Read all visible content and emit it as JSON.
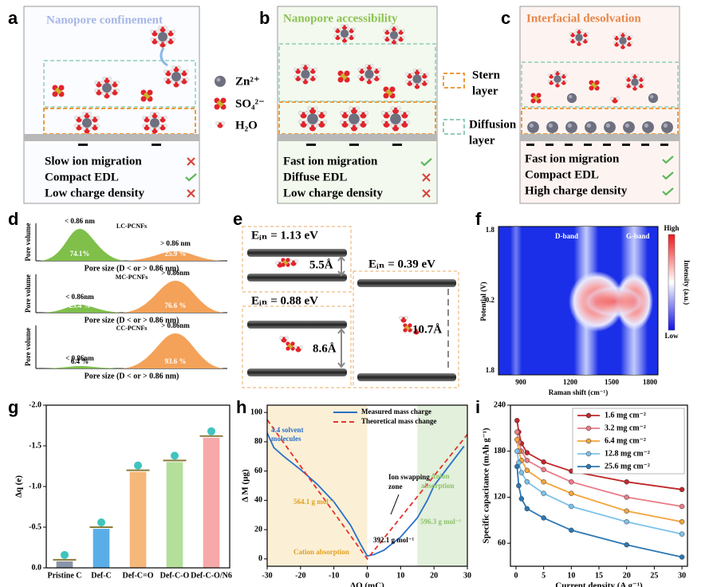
{
  "panels": {
    "a": {
      "letter": "a",
      "title": "Nanopore confinement",
      "items": [
        "Slow ion migration",
        "Compact EDL",
        "Low charge density"
      ]
    },
    "b": {
      "letter": "b",
      "title": "Nanopore accessibility",
      "items": [
        "Fast ion migration",
        "Diffuse EDL",
        "Low charge density"
      ]
    },
    "c": {
      "letter": "c",
      "title": "Interfacial desolvation",
      "items": [
        "Fast ion migration",
        "Compact EDL",
        "High charge density"
      ]
    },
    "legend": {
      "species": [
        "Zn²⁺",
        "SO₄²⁻",
        "H₂O"
      ],
      "stern": [
        "Stern",
        "layer"
      ],
      "diffusion": [
        "Diffusion",
        "layer"
      ]
    },
    "d": {
      "letter": "d",
      "ylabel": "Pore volume",
      "xlabel": "Pore size (D < or > 0.86 nm)",
      "plots": [
        {
          "name": "LC-PCNFs",
          "small_label": "< 0.86 nm",
          "large_label": "> 0.86 nm",
          "small_pct": "74.1%",
          "large_pct": "25.9 %"
        },
        {
          "name": "MC-PCNFs",
          "small_label": "< 0.86nm",
          "large_label": "> 0.86nm",
          "small_pct": "23.4 %",
          "large_pct": "76.6 %"
        },
        {
          "name": "CC-PCNFs",
          "small_label": "< 0.86nm",
          "large_label": "> 0.86nm",
          "small_pct": "6.4 %",
          "large_pct": "93.6 %"
        }
      ]
    },
    "e": {
      "letter": "e",
      "energies": [
        "Eᵢₙ = 1.13 eV",
        "Eᵢₙ = 0.88 eV",
        "Eᵢₙ = 0.39 eV"
      ],
      "spacings": [
        "5.5Å",
        "8.6Å",
        "10.7Å"
      ]
    },
    "f": {
      "letter": "f",
      "xlabel": "Raman shift (cm⁻¹)",
      "ylabel": "Potential (V)",
      "yticks": [
        "1.8",
        "0.2",
        "1.8"
      ],
      "xticks": [
        "900",
        "1200",
        "1500",
        "1800"
      ],
      "bands": [
        "D-band",
        "G-band"
      ],
      "colorbar": {
        "high": "High",
        "low": "Low",
        "label": "Intensity (a.u.)"
      }
    },
    "g": {
      "letter": "g",
      "type": "bar",
      "ylabel": "Δq (e)",
      "categories": [
        "Pristine C",
        "Def-C",
        "Def-C=O",
        "Def-C-O",
        "Def-C-O/N6"
      ],
      "values": [
        -0.08,
        -0.48,
        -1.18,
        -1.3,
        -1.6
      ],
      "colors": [
        "#8a94a8",
        "#5aaee8",
        "#f6b77a",
        "#b4df9a",
        "#f7a8a8"
      ],
      "ylim": [
        0,
        -2
      ],
      "yticks": [
        {
          "value": 0,
          "label": "0.0"
        },
        -0.5,
        {
          "value": -1,
          "label": "-1.0"
        },
        -1.5,
        {
          "value": -2,
          "label": "-2.0"
        }
      ]
    },
    "h": {
      "letter": "h",
      "type": "line",
      "xlabel": "ΔQ (mC)",
      "ylabel": "Δ M (μg)",
      "xlim": [
        -30,
        30
      ],
      "ylim": [
        -5,
        105
      ],
      "xticks": [
        -30,
        -20,
        -10,
        0,
        10,
        20,
        30
      ],
      "yticks": [
        0,
        20,
        40,
        60,
        80,
        100
      ],
      "regions": [
        {
          "range": [
            -30,
            0
          ],
          "color": "#fbf0d6"
        },
        {
          "range": [
            15,
            30
          ],
          "color": "#e2f0dc"
        }
      ],
      "series": [
        {
          "name": "Measured mass charge",
          "color": "#2a6fc9",
          "dashed": false,
          "x": [
            -30,
            -28,
            -25,
            -20,
            -15,
            -10,
            -5,
            -2,
            0,
            2,
            5,
            10,
            15,
            18,
            20,
            25,
            29
          ],
          "values": [
            86,
            76,
            70,
            61,
            51,
            39,
            23,
            10,
            2,
            3,
            6,
            15,
            28,
            40,
            50,
            65,
            77
          ]
        },
        {
          "name": "Theoretical mass change",
          "color": "#e8312b",
          "dashed": true,
          "x": [
            -30,
            0,
            30
          ],
          "values": [
            95,
            0,
            85
          ]
        }
      ],
      "annotations": [
        "4.4 solvent",
        "molecules",
        "564.1 g mol⁻¹",
        "Cation absorption",
        "Ion swapping",
        "zone",
        "392.1 g mol⁻¹",
        "Anion",
        "absorption",
        "596.3 g mol⁻¹"
      ]
    },
    "i": {
      "letter": "i",
      "type": "line",
      "xlabel": "Current density (A g⁻¹)",
      "ylabel": "Specific capacitance (mAh g⁻¹)",
      "xlim": [
        -1,
        31
      ],
      "ylim": [
        30,
        240
      ],
      "xticks": [
        0,
        5,
        10,
        15,
        20,
        25,
        30
      ],
      "yticks": [
        60,
        120,
        180,
        240
      ],
      "x": [
        0.2,
        0.5,
        1,
        2,
        5,
        10,
        20,
        30
      ],
      "series": [
        {
          "name": "1.6 mg cm⁻²",
          "color": "#c0282b",
          "values": [
            220,
            205,
            190,
            178,
            166,
            154,
            140,
            130
          ]
        },
        {
          "name": "3.2 mg cm⁻²",
          "color": "#ea7b86",
          "values": [
            205,
            192,
            180,
            168,
            156,
            140,
            120,
            108
          ]
        },
        {
          "name": "6.4 mg cm⁻²",
          "color": "#f3a53c",
          "values": [
            195,
            180,
            168,
            155,
            140,
            125,
            102,
            88
          ]
        },
        {
          "name": "12.8 mg cm⁻²",
          "color": "#7cc2e8",
          "values": [
            180,
            165,
            152,
            140,
            125,
            108,
            88,
            72
          ]
        },
        {
          "name": "25.6 mg cm⁻²",
          "color": "#2c78b4",
          "values": [
            160,
            135,
            118,
            105,
            93,
            77,
            58,
            42
          ]
        }
      ]
    }
  }
}
